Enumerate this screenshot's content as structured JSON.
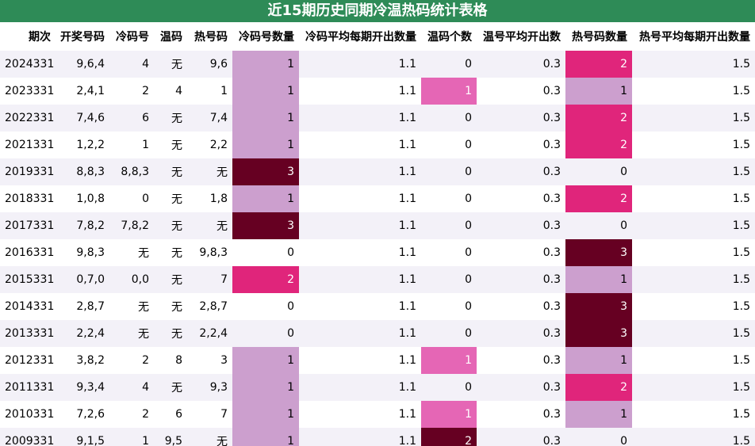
{
  "title": "近15期历史同期冷温热码统计表格",
  "headers": [
    "期次",
    "开奖号码",
    "冷码号",
    "温码",
    "热号码",
    "冷码号数量",
    "冷码平均每期开出数量",
    "温码个数",
    "温号平均开出数",
    "热号码数量",
    "热号平均每期开出数量"
  ],
  "rows": [
    [
      "2024331",
      "9,6,4",
      "4",
      "无",
      "9,6",
      "1",
      "1.1",
      "0",
      "0.3",
      "2",
      "1.5"
    ],
    [
      "2023331",
      "2,4,1",
      "2",
      "4",
      "1",
      "1",
      "1.1",
      "1",
      "0.3",
      "1",
      "1.5"
    ],
    [
      "2022331",
      "7,4,6",
      "6",
      "无",
      "7,4",
      "1",
      "1.1",
      "0",
      "0.3",
      "2",
      "1.5"
    ],
    [
      "2021331",
      "1,2,2",
      "1",
      "无",
      "2,2",
      "1",
      "1.1",
      "0",
      "0.3",
      "2",
      "1.5"
    ],
    [
      "2019331",
      "8,8,3",
      "8,8,3",
      "无",
      "无",
      "3",
      "1.1",
      "0",
      "0.3",
      "0",
      "1.5"
    ],
    [
      "2018331",
      "1,0,8",
      "0",
      "无",
      "1,8",
      "1",
      "1.1",
      "0",
      "0.3",
      "2",
      "1.5"
    ],
    [
      "2017331",
      "7,8,2",
      "7,8,2",
      "无",
      "无",
      "3",
      "1.1",
      "0",
      "0.3",
      "0",
      "1.5"
    ],
    [
      "2016331",
      "9,8,3",
      "无",
      "无",
      "9,8,3",
      "0",
      "1.1",
      "0",
      "0.3",
      "3",
      "1.5"
    ],
    [
      "2015331",
      "0,7,0",
      "0,0",
      "无",
      "7",
      "2",
      "1.1",
      "0",
      "0.3",
      "1",
      "1.5"
    ],
    [
      "2014331",
      "2,8,7",
      "无",
      "无",
      "2,8,7",
      "0",
      "1.1",
      "0",
      "0.3",
      "3",
      "1.5"
    ],
    [
      "2013331",
      "2,2,4",
      "无",
      "无",
      "2,2,4",
      "0",
      "1.1",
      "0",
      "0.3",
      "3",
      "1.5"
    ],
    [
      "2012331",
      "3,8,2",
      "2",
      "8",
      "3",
      "1",
      "1.1",
      "1",
      "0.3",
      "1",
      "1.5"
    ],
    [
      "2011331",
      "9,3,4",
      "4",
      "无",
      "9,3",
      "1",
      "1.1",
      "0",
      "0.3",
      "2",
      "1.5"
    ],
    [
      "2010331",
      "7,2,6",
      "2",
      "6",
      "7",
      "1",
      "1.1",
      "1",
      "0.3",
      "1",
      "1.5"
    ],
    [
      "2009331",
      "9,1,5",
      "1",
      "9,5",
      "无",
      "1",
      "1.1",
      "2",
      "0.3",
      "0",
      "1.5"
    ]
  ],
  "colors": {
    "title_bg": "#2e8b57",
    "count_1": "#cc9fce",
    "count_2": "#e0257b",
    "count_3": "#660022",
    "warm_1": "#e566b5",
    "warm_2": "#660022",
    "row_alt": "#f3f1f8"
  }
}
